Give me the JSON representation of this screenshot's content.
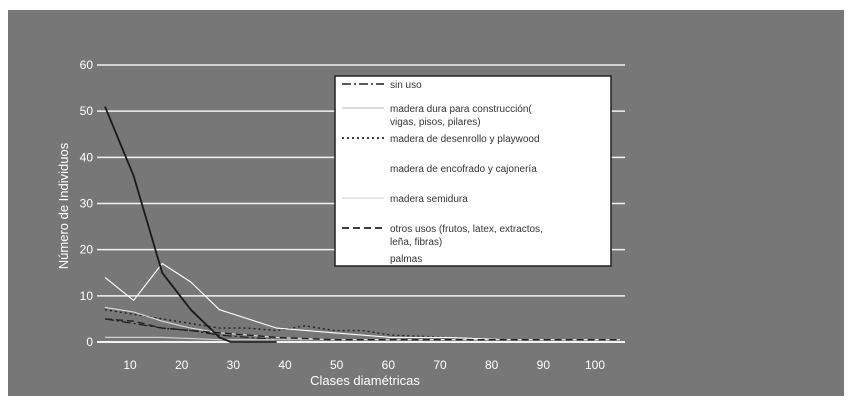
{
  "chart_data": {
    "type": "line",
    "ylabel": "Número de Individuos",
    "xlabel": "Clases diamétricas",
    "x_ticks": [
      "10",
      "20",
      "30",
      "40",
      "50",
      "60",
      "70",
      "80",
      "90",
      "100"
    ],
    "y_ticks": [
      "0",
      "10",
      "20",
      "30",
      "40",
      "50",
      "60"
    ],
    "xlim": [
      10,
      100
    ],
    "ylim": [
      0,
      60
    ],
    "grid": true,
    "legend_position": "top-right",
    "series": [
      {
        "name": "sin uso",
        "x": [
          10,
          15,
          20,
          25,
          30,
          35,
          40,
          45,
          50,
          60,
          70,
          80,
          90,
          100
        ],
        "y": [
          5,
          4,
          3,
          2.5,
          1.5,
          1,
          0.5,
          0.5,
          0.5,
          0.5,
          0.5,
          0.5,
          0.5,
          0.5
        ]
      },
      {
        "name": "madera dura para construcción( vigas, pisos, pilares)",
        "x": [
          10,
          20,
          30,
          40,
          50,
          60,
          70,
          80,
          90,
          100
        ],
        "y": [
          1,
          1,
          0.5,
          0.5,
          0.5,
          0.5,
          0.5,
          0.5,
          0.5,
          0.5
        ]
      },
      {
        "name": "madera de desenrollo y playwood",
        "x": [
          10,
          15,
          20,
          25,
          30,
          35,
          40,
          45,
          50,
          55,
          60,
          70,
          80,
          90,
          100
        ],
        "y": [
          7,
          6,
          5,
          4,
          3,
          3,
          2.5,
          3.5,
          2.5,
          2.5,
          1.5,
          1,
          0.5,
          0.5,
          0.5
        ]
      },
      {
        "name": "madera de encofrado y cajonería",
        "x": [
          10,
          15,
          20,
          25,
          30,
          35,
          40,
          50,
          60,
          70,
          80,
          90,
          100
        ],
        "y": [
          14,
          9,
          17,
          13,
          7,
          5,
          3,
          2,
          1,
          1,
          0.5,
          0.5,
          0.5
        ]
      },
      {
        "name": "madera semidura",
        "x": [
          10,
          15,
          20,
          25,
          30,
          35,
          40,
          50,
          60,
          70,
          80,
          90,
          100
        ],
        "y": [
          7.5,
          6.5,
          4.5,
          3,
          2,
          1.5,
          1,
          0.5,
          0.5,
          0.5,
          0.5,
          0.5,
          0.5
        ]
      },
      {
        "name": "otros usos (frutos, latex, extractos, leña, fibras)",
        "x": [
          10,
          15,
          20,
          25,
          30,
          35,
          40,
          50,
          60,
          70,
          80,
          90,
          100
        ],
        "y": [
          5,
          4.5,
          3,
          2.5,
          2,
          1.5,
          1,
          0.5,
          0.5,
          0.5,
          0.5,
          0.5,
          0.5
        ]
      },
      {
        "name": "palmas",
        "x": [
          10,
          15,
          20,
          25,
          30,
          32,
          35,
          40
        ],
        "y": [
          51,
          36,
          15,
          7,
          1,
          0,
          0,
          0
        ]
      }
    ],
    "legend": [
      {
        "lines": [
          "sin uso"
        ],
        "series": 0
      },
      {
        "lines": [
          "madera dura para construcción(",
          "vigas, pisos, pilares)"
        ],
        "series": 1
      },
      {
        "lines": [
          "madera de desenrollo y playwood"
        ],
        "series": 2
      },
      {
        "lines": [
          "madera de encofrado y cajonería"
        ],
        "series": 3
      },
      {
        "lines": [
          "madera semidura"
        ],
        "series": 4
      },
      {
        "lines": [
          "otros usos (frutos, latex, extractos,",
          "leña, fibras)"
        ],
        "series": 5
      },
      {
        "lines": [
          "palmas"
        ],
        "series": 6
      }
    ],
    "colors": {
      "background": "#777777",
      "gridline": "#f2f2f2",
      "legend_bg": "#ffffff",
      "legend_text": "#333333",
      "tick_text": "#ffffff",
      "series": [
        "#222222",
        "#d0d0d0",
        "#222222",
        "#ffffff",
        "#dddddd",
        "#222222",
        "#1a1a1a"
      ]
    }
  }
}
